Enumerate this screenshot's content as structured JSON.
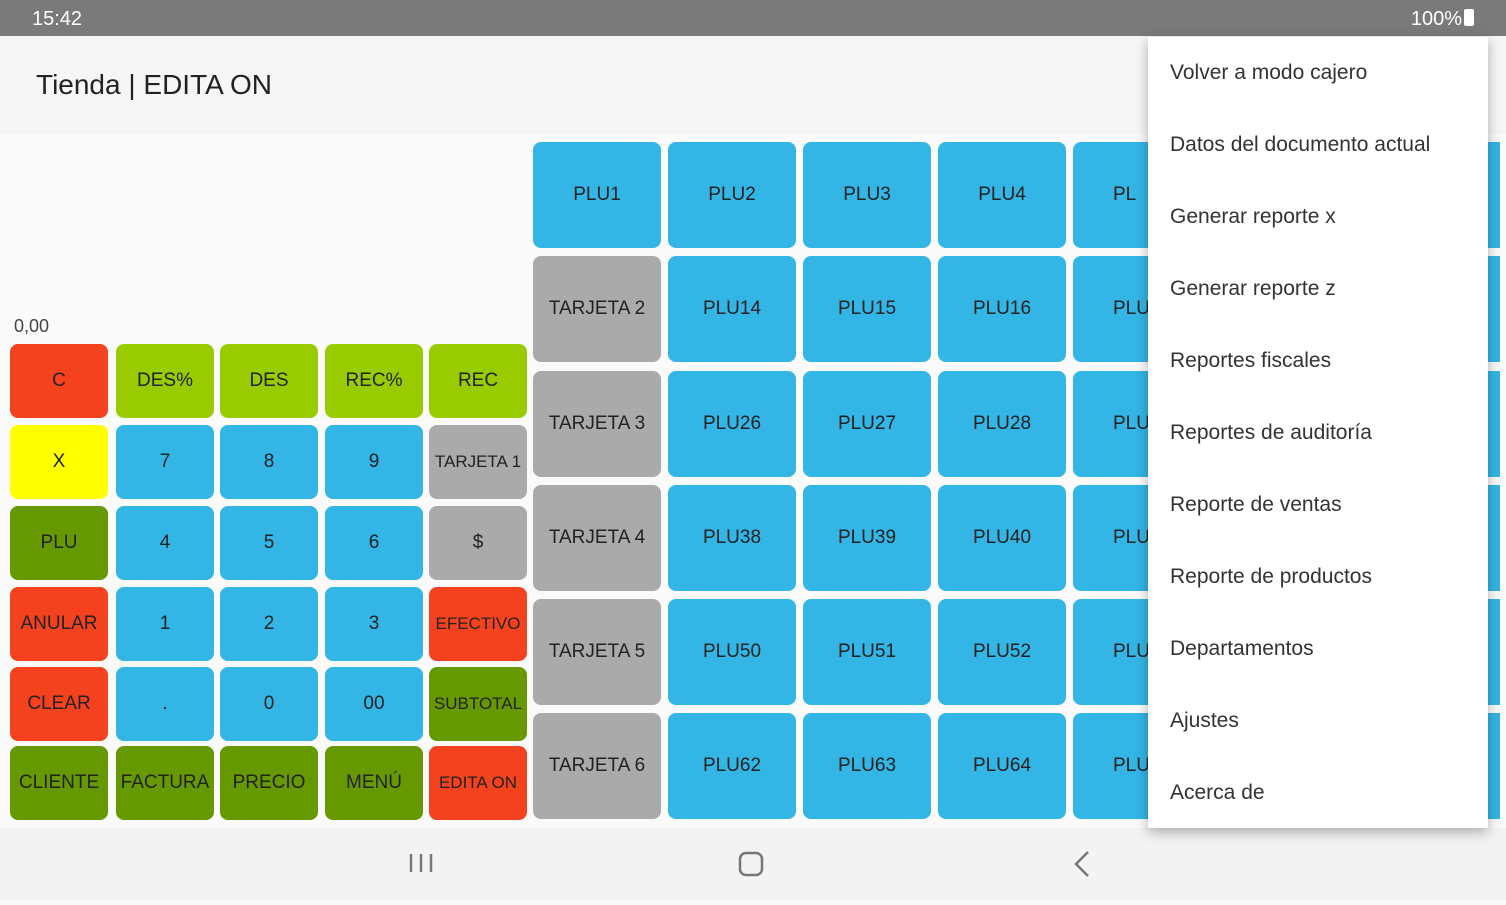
{
  "status_bar": {
    "time": "15:42",
    "battery": "100%"
  },
  "header": {
    "title": "Tienda | EDITA ON"
  },
  "display": "0,00",
  "keypad": {
    "rows": [
      [
        {
          "label": "C",
          "color": "#f4411e"
        },
        {
          "label": "DES%",
          "color": "#99cc00"
        },
        {
          "label": "DES",
          "color": "#99cc00"
        },
        {
          "label": "REC%",
          "color": "#99cc00"
        },
        {
          "label": "REC",
          "color": "#99cc00"
        }
      ],
      [
        {
          "label": "X",
          "color": "#ffff00"
        },
        {
          "label": "7",
          "color": "#33b5e5"
        },
        {
          "label": "8",
          "color": "#33b5e5"
        },
        {
          "label": "9",
          "color": "#33b5e5"
        },
        {
          "label": "TARJETA 1",
          "color": "#aaaaaa"
        }
      ],
      [
        {
          "label": "PLU",
          "color": "#669900"
        },
        {
          "label": "4",
          "color": "#33b5e5"
        },
        {
          "label": "5",
          "color": "#33b5e5"
        },
        {
          "label": "6",
          "color": "#33b5e5"
        },
        {
          "label": "$",
          "color": "#aaaaaa"
        }
      ],
      [
        {
          "label": "ANULAR",
          "color": "#f4411e"
        },
        {
          "label": "1",
          "color": "#33b5e5"
        },
        {
          "label": "2",
          "color": "#33b5e5"
        },
        {
          "label": "3",
          "color": "#33b5e5"
        },
        {
          "label": "EFECTIVO",
          "color": "#f4411e"
        }
      ],
      [
        {
          "label": "CLEAR",
          "color": "#f4411e"
        },
        {
          "label": ".",
          "color": "#33b5e5"
        },
        {
          "label": "0",
          "color": "#33b5e5"
        },
        {
          "label": "00",
          "color": "#33b5e5"
        },
        {
          "label": "SUBTOTAL",
          "color": "#669900"
        }
      ],
      [
        {
          "label": "CLIENTE",
          "color": "#669900"
        },
        {
          "label": "FACTURA",
          "color": "#669900"
        },
        {
          "label": "PRECIO",
          "color": "#669900"
        },
        {
          "label": "MENÚ",
          "color": "#669900"
        },
        {
          "label": "EDITA ON",
          "color": "#f4411e"
        }
      ]
    ]
  },
  "plu_grid": {
    "rows": [
      [
        {
          "label": "PLU1",
          "color": "#33b5e5"
        },
        {
          "label": "PLU2",
          "color": "#33b5e5"
        },
        {
          "label": "PLU3",
          "color": "#33b5e5"
        },
        {
          "label": "PLU4",
          "color": "#33b5e5"
        },
        {
          "label": "PL",
          "color": "#33b5e5"
        }
      ],
      [
        {
          "label": "TARJETA 2",
          "color": "#aaaaaa"
        },
        {
          "label": "PLU14",
          "color": "#33b5e5"
        },
        {
          "label": "PLU15",
          "color": "#33b5e5"
        },
        {
          "label": "PLU16",
          "color": "#33b5e5"
        },
        {
          "label": "PLU",
          "color": "#33b5e5"
        }
      ],
      [
        {
          "label": "TARJETA 3",
          "color": "#aaaaaa"
        },
        {
          "label": "PLU26",
          "color": "#33b5e5"
        },
        {
          "label": "PLU27",
          "color": "#33b5e5"
        },
        {
          "label": "PLU28",
          "color": "#33b5e5"
        },
        {
          "label": "PLU",
          "color": "#33b5e5"
        }
      ],
      [
        {
          "label": "TARJETA 4",
          "color": "#aaaaaa"
        },
        {
          "label": "PLU38",
          "color": "#33b5e5"
        },
        {
          "label": "PLU39",
          "color": "#33b5e5"
        },
        {
          "label": "PLU40",
          "color": "#33b5e5"
        },
        {
          "label": "PLU",
          "color": "#33b5e5"
        }
      ],
      [
        {
          "label": "TARJETA 5",
          "color": "#aaaaaa"
        },
        {
          "label": "PLU50",
          "color": "#33b5e5"
        },
        {
          "label": "PLU51",
          "color": "#33b5e5"
        },
        {
          "label": "PLU52",
          "color": "#33b5e5"
        },
        {
          "label": "PLU",
          "color": "#33b5e5"
        }
      ],
      [
        {
          "label": "TARJETA 6",
          "color": "#aaaaaa"
        },
        {
          "label": "PLU62",
          "color": "#33b5e5"
        },
        {
          "label": "PLU63",
          "color": "#33b5e5"
        },
        {
          "label": "PLU64",
          "color": "#33b5e5"
        },
        {
          "label": "PLU",
          "color": "#33b5e5"
        }
      ]
    ]
  },
  "menu": {
    "items": [
      "Volver a modo cajero",
      "Datos del documento actual",
      "Generar reporte x",
      "Generar reporte z",
      "Reportes fiscales",
      "Reportes de auditoría",
      "Reporte de ventas",
      "Reporte de productos",
      "Departamentos",
      "Ajustes",
      "Acerca de"
    ]
  }
}
